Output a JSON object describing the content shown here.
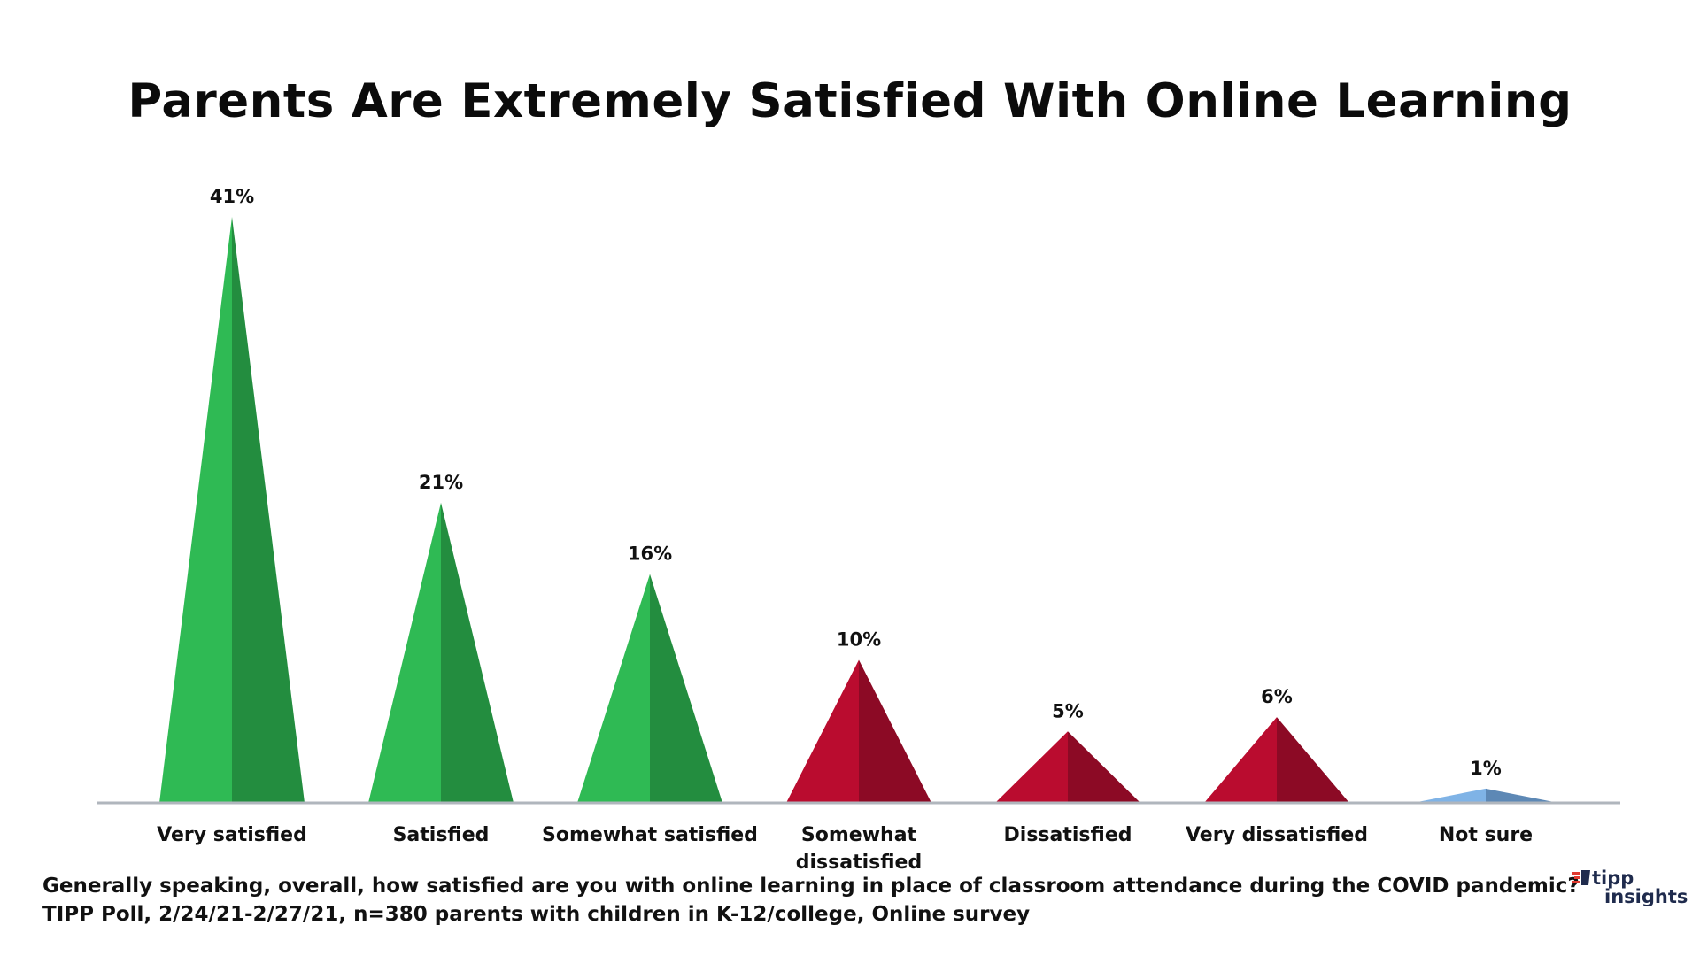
{
  "chart_data": {
    "type": "bar",
    "title": "Parents Are Extremely Satisfied With Online Learning",
    "categories": [
      "Very satisfied",
      "Satisfied",
      "Somewhat satisfied",
      "Somewhat dissatisfied",
      "Dissatisfied",
      "Very dissatisfied",
      "Not sure"
    ],
    "values": [
      41,
      21,
      16,
      10,
      5,
      6,
      1
    ],
    "data_labels": [
      "41%",
      "21%",
      "16%",
      "10%",
      "5%",
      "6%",
      "1%"
    ],
    "series": [
      {
        "values": [
          41,
          21,
          16,
          10,
          5,
          6,
          1
        ]
      }
    ],
    "ylim": [
      0,
      41
    ],
    "grid": false,
    "legend": "none",
    "colors": {
      "satisfied": [
        "#2fba54",
        "#238d3f"
      ],
      "dissatisfied": [
        "#ba0c2f",
        "#8c0a25"
      ],
      "not_sure": [
        "#7fb3e6",
        "#5d88b5"
      ],
      "baseline": "#b0b6bd"
    },
    "bar_groups": [
      "satisfied",
      "satisfied",
      "satisfied",
      "dissatisfied",
      "dissatisfied",
      "dissatisfied",
      "not_sure"
    ]
  },
  "footnote": {
    "question": "Generally speaking, overall, how satisfied are you with online learning in place of classroom attendance during the COVID pandemic?",
    "source": "TIPP Poll, 2/24/21-2/27/21, n=380 parents with children in K-12/college, Online survey"
  },
  "logo": {
    "line1": "tipp",
    "line2": "insights",
    "icon": "tipp-flag-icon",
    "colors": [
      "#e03a2f",
      "#1f2b4d"
    ]
  }
}
